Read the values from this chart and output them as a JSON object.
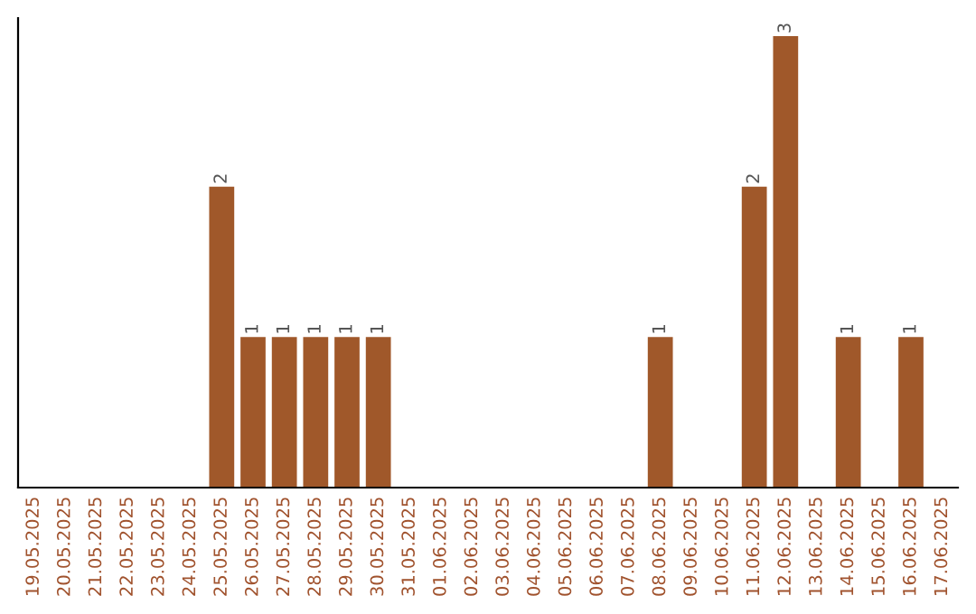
{
  "chart_data": {
    "type": "bar",
    "categories": [
      "19.05.2025",
      "20.05.2025",
      "21.05.2025",
      "22.05.2025",
      "23.05.2025",
      "24.05.2025",
      "25.05.2025",
      "26.05.2025",
      "27.05.2025",
      "28.05.2025",
      "29.05.2025",
      "30.05.2025",
      "31.05.2025",
      "01.06.2025",
      "02.06.2025",
      "03.06.2025",
      "04.06.2025",
      "05.06.2025",
      "06.06.2025",
      "07.06.2025",
      "08.06.2025",
      "09.06.2025",
      "10.06.2025",
      "11.06.2025",
      "12.06.2025",
      "13.06.2025",
      "14.06.2025",
      "15.06.2025",
      "16.06.2025",
      "17.06.2025"
    ],
    "values": [
      0,
      0,
      0,
      0,
      0,
      0,
      2,
      1,
      1,
      1,
      1,
      1,
      0,
      0,
      0,
      0,
      0,
      0,
      0,
      0,
      1,
      0,
      0,
      2,
      3,
      0,
      1,
      0,
      1,
      0
    ],
    "value_labels": [
      null,
      null,
      null,
      null,
      null,
      null,
      "2",
      "1",
      "1",
      "1",
      "1",
      "1",
      null,
      null,
      null,
      null,
      null,
      null,
      null,
      null,
      "1",
      null,
      null,
      "2",
      "3",
      null,
      "1",
      null,
      "1",
      null
    ],
    "color": "#a0582a",
    "tick_labels": "x",
    "grid": false
  }
}
